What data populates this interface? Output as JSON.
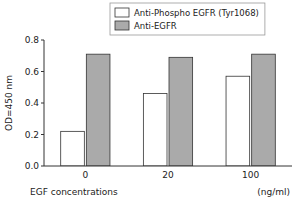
{
  "chart_data": {
    "type": "bar",
    "categories": [
      "0",
      "20",
      "100"
    ],
    "series": [
      {
        "name": "Anti-Phospho EGFR (Tyr1068)",
        "color": "white",
        "values": [
          0.22,
          0.46,
          0.57
        ]
      },
      {
        "name": "Anti-EGFR",
        "color": "#aaaaaa",
        "values": [
          0.71,
          0.69,
          0.71
        ]
      }
    ],
    "ylabel": "OD=450 nm",
    "xlabel": "EGF concentrations",
    "annotations": [
      "(ng/ml)"
    ],
    "ylim": [
      0.0,
      0.8
    ],
    "yticks": [
      {
        "value": 0.0,
        "label": "0.0"
      },
      0.2,
      0.4,
      0.6,
      0.8
    ],
    "grid": false,
    "legend": "top"
  }
}
